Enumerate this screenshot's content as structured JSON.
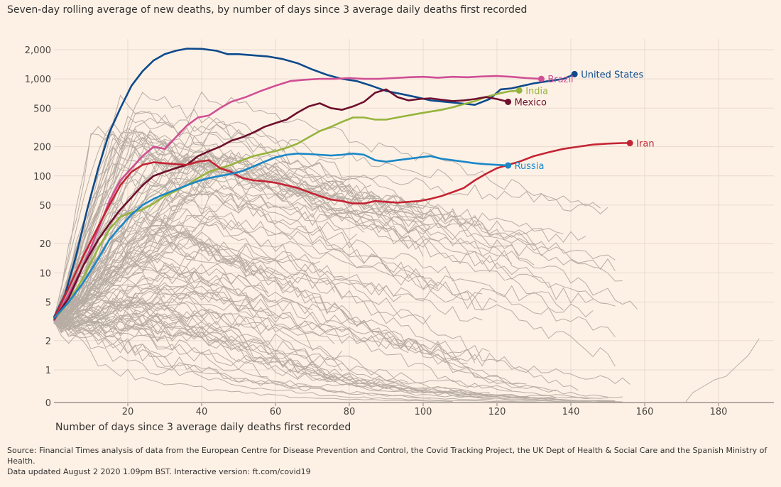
{
  "chart_data": {
    "type": "line",
    "title": "Seven-day rolling average of new deaths, by number of days since 3 average daily deaths first recorded",
    "xlabel": "Number of days since 3 average daily deaths first recorded",
    "ylabel": "",
    "yscale": "log",
    "xlim": [
      0,
      192
    ],
    "ylim": [
      0,
      2600
    ],
    "x_ticks": [
      20,
      40,
      60,
      80,
      100,
      120,
      140,
      160,
      180
    ],
    "y_ticks": [
      {
        "value": 0,
        "label": "0"
      },
      {
        "value": 1,
        "label": "1"
      },
      {
        "value": 2,
        "label": "2"
      },
      {
        "value": 5,
        "label": "5"
      },
      {
        "value": 10,
        "label": "10"
      },
      {
        "value": 20,
        "label": "20"
      },
      {
        "value": 50,
        "label": "50"
      },
      {
        "value": 100,
        "label": "100"
      },
      {
        "value": 200,
        "label": "200"
      },
      {
        "value": 500,
        "label": "500"
      },
      {
        "value": 1000,
        "label": "1,000"
      },
      {
        "value": 2000,
        "label": "2,000"
      }
    ],
    "grid": true,
    "series": [
      {
        "name": "United States",
        "color": "#0d4a8c",
        "points": [
          [
            0,
            3.5
          ],
          [
            3,
            6
          ],
          [
            6,
            15
          ],
          [
            9,
            45
          ],
          [
            12,
            120
          ],
          [
            15,
            280
          ],
          [
            18,
            500
          ],
          [
            21,
            850
          ],
          [
            24,
            1200
          ],
          [
            27,
            1550
          ],
          [
            30,
            1800
          ],
          [
            33,
            1950
          ],
          [
            36,
            2050
          ],
          [
            40,
            2040
          ],
          [
            44,
            1950
          ],
          [
            47,
            1800
          ],
          [
            50,
            1800
          ],
          [
            54,
            1750
          ],
          [
            58,
            1700
          ],
          [
            62,
            1600
          ],
          [
            66,
            1450
          ],
          [
            70,
            1250
          ],
          [
            74,
            1100
          ],
          [
            78,
            1000
          ],
          [
            82,
            950
          ],
          [
            86,
            850
          ],
          [
            90,
            750
          ],
          [
            94,
            700
          ],
          [
            98,
            650
          ],
          [
            102,
            600
          ],
          [
            106,
            580
          ],
          [
            110,
            560
          ],
          [
            114,
            540
          ],
          [
            118,
            620
          ],
          [
            121,
            780
          ],
          [
            124,
            800
          ],
          [
            127,
            850
          ],
          [
            130,
            900
          ],
          [
            134,
            950
          ],
          [
            138,
            1000
          ],
          [
            141,
            1120
          ]
        ]
      },
      {
        "name": "Brazil",
        "color": "#d04f95",
        "points": [
          [
            0,
            3.2
          ],
          [
            4,
            6
          ],
          [
            8,
            12
          ],
          [
            12,
            28
          ],
          [
            15,
            55
          ],
          [
            18,
            90
          ],
          [
            21,
            120
          ],
          [
            24,
            160
          ],
          [
            27,
            200
          ],
          [
            30,
            190
          ],
          [
            33,
            250
          ],
          [
            36,
            330
          ],
          [
            39,
            400
          ],
          [
            42,
            420
          ],
          [
            45,
            500
          ],
          [
            48,
            580
          ],
          [
            52,
            650
          ],
          [
            56,
            750
          ],
          [
            60,
            850
          ],
          [
            64,
            950
          ],
          [
            68,
            980
          ],
          [
            72,
            1000
          ],
          [
            76,
            1000
          ],
          [
            80,
            1020
          ],
          [
            84,
            1000
          ],
          [
            88,
            1000
          ],
          [
            92,
            1020
          ],
          [
            96,
            1040
          ],
          [
            100,
            1050
          ],
          [
            104,
            1030
          ],
          [
            108,
            1050
          ],
          [
            112,
            1040
          ],
          [
            116,
            1060
          ],
          [
            120,
            1070
          ],
          [
            124,
            1050
          ],
          [
            128,
            1020
          ],
          [
            132,
            1000
          ]
        ]
      },
      {
        "name": "India",
        "color": "#96b43c",
        "points": [
          [
            0,
            3.3
          ],
          [
            4,
            5
          ],
          [
            8,
            9
          ],
          [
            12,
            18
          ],
          [
            15,
            28
          ],
          [
            18,
            38
          ],
          [
            21,
            42
          ],
          [
            24,
            45
          ],
          [
            27,
            52
          ],
          [
            30,
            62
          ],
          [
            33,
            70
          ],
          [
            36,
            80
          ],
          [
            39,
            95
          ],
          [
            42,
            110
          ],
          [
            45,
            120
          ],
          [
            48,
            130
          ],
          [
            51,
            145
          ],
          [
            54,
            160
          ],
          [
            57,
            170
          ],
          [
            60,
            180
          ],
          [
            63,
            195
          ],
          [
            66,
            215
          ],
          [
            69,
            250
          ],
          [
            72,
            290
          ],
          [
            75,
            320
          ],
          [
            78,
            360
          ],
          [
            81,
            400
          ],
          [
            84,
            400
          ],
          [
            87,
            380
          ],
          [
            90,
            380
          ],
          [
            93,
            400
          ],
          [
            96,
            420
          ],
          [
            99,
            440
          ],
          [
            102,
            460
          ],
          [
            105,
            480
          ],
          [
            108,
            510
          ],
          [
            111,
            550
          ],
          [
            114,
            590
          ],
          [
            117,
            650
          ],
          [
            120,
            700
          ],
          [
            123,
            740
          ],
          [
            126,
            760
          ]
        ]
      },
      {
        "name": "Mexico",
        "color": "#6e0f2d",
        "points": [
          [
            0,
            3.3
          ],
          [
            4,
            5.5
          ],
          [
            8,
            12
          ],
          [
            12,
            22
          ],
          [
            15,
            32
          ],
          [
            18,
            45
          ],
          [
            21,
            60
          ],
          [
            24,
            80
          ],
          [
            27,
            100
          ],
          [
            30,
            110
          ],
          [
            33,
            120
          ],
          [
            36,
            130
          ],
          [
            39,
            160
          ],
          [
            42,
            180
          ],
          [
            45,
            200
          ],
          [
            48,
            230
          ],
          [
            51,
            250
          ],
          [
            54,
            280
          ],
          [
            57,
            320
          ],
          [
            60,
            350
          ],
          [
            63,
            380
          ],
          [
            66,
            450
          ],
          [
            69,
            520
          ],
          [
            72,
            560
          ],
          [
            75,
            500
          ],
          [
            78,
            480
          ],
          [
            81,
            520
          ],
          [
            84,
            580
          ],
          [
            87,
            720
          ],
          [
            90,
            780
          ],
          [
            93,
            650
          ],
          [
            96,
            600
          ],
          [
            99,
            620
          ],
          [
            102,
            630
          ],
          [
            105,
            610
          ],
          [
            108,
            590
          ],
          [
            111,
            600
          ],
          [
            114,
            620
          ],
          [
            117,
            650
          ],
          [
            120,
            620
          ],
          [
            123,
            580
          ]
        ]
      },
      {
        "name": "Iran",
        "color": "#c42434",
        "points": [
          [
            0,
            3.4
          ],
          [
            4,
            7
          ],
          [
            8,
            15
          ],
          [
            12,
            30
          ],
          [
            15,
            50
          ],
          [
            18,
            80
          ],
          [
            21,
            110
          ],
          [
            24,
            130
          ],
          [
            27,
            138
          ],
          [
            30,
            135
          ],
          [
            33,
            132
          ],
          [
            36,
            130
          ],
          [
            39,
            140
          ],
          [
            42,
            145
          ],
          [
            45,
            120
          ],
          [
            48,
            110
          ],
          [
            51,
            95
          ],
          [
            54,
            90
          ],
          [
            57,
            88
          ],
          [
            60,
            85
          ],
          [
            63,
            80
          ],
          [
            66,
            75
          ],
          [
            69,
            68
          ],
          [
            72,
            62
          ],
          [
            75,
            57
          ],
          [
            78,
            55
          ],
          [
            81,
            52
          ],
          [
            84,
            52
          ],
          [
            87,
            55
          ],
          [
            90,
            54
          ],
          [
            93,
            53
          ],
          [
            96,
            54
          ],
          [
            99,
            55
          ],
          [
            102,
            58
          ],
          [
            105,
            62
          ],
          [
            108,
            68
          ],
          [
            111,
            75
          ],
          [
            114,
            90
          ],
          [
            117,
            105
          ],
          [
            120,
            120
          ],
          [
            123,
            130
          ],
          [
            126,
            140
          ],
          [
            130,
            160
          ],
          [
            134,
            175
          ],
          [
            138,
            190
          ],
          [
            142,
            200
          ],
          [
            146,
            210
          ],
          [
            150,
            215
          ],
          [
            154,
            218
          ],
          [
            156,
            218
          ]
        ]
      },
      {
        "name": "Russia",
        "color": "#1a87c7",
        "points": [
          [
            0,
            3.4
          ],
          [
            4,
            5
          ],
          [
            8,
            8
          ],
          [
            12,
            14
          ],
          [
            15,
            22
          ],
          [
            18,
            30
          ],
          [
            21,
            40
          ],
          [
            24,
            50
          ],
          [
            27,
            58
          ],
          [
            30,
            65
          ],
          [
            33,
            72
          ],
          [
            36,
            80
          ],
          [
            39,
            88
          ],
          [
            42,
            95
          ],
          [
            45,
            100
          ],
          [
            48,
            105
          ],
          [
            51,
            112
          ],
          [
            54,
            125
          ],
          [
            57,
            140
          ],
          [
            60,
            155
          ],
          [
            63,
            165
          ],
          [
            66,
            170
          ],
          [
            69,
            168
          ],
          [
            72,
            165
          ],
          [
            75,
            162
          ],
          [
            78,
            165
          ],
          [
            81,
            170
          ],
          [
            84,
            165
          ],
          [
            87,
            145
          ],
          [
            90,
            140
          ],
          [
            93,
            145
          ],
          [
            96,
            150
          ],
          [
            99,
            155
          ],
          [
            102,
            160
          ],
          [
            105,
            150
          ],
          [
            108,
            145
          ],
          [
            111,
            140
          ],
          [
            114,
            135
          ],
          [
            117,
            132
          ],
          [
            120,
            130
          ],
          [
            123,
            128
          ]
        ]
      }
    ],
    "annotations": [
      {
        "label": "United States",
        "x": 141,
        "y": 1120
      },
      {
        "label": "Brazil",
        "x": 132,
        "y": 1000
      },
      {
        "label": "India",
        "x": 126,
        "y": 760
      },
      {
        "label": "Mexico",
        "x": 123,
        "y": 580
      },
      {
        "label": "Iran",
        "x": 156,
        "y": 218
      },
      {
        "label": "Russia",
        "x": 123,
        "y": 128
      }
    ],
    "background_series_count": 120,
    "background_color": "#b8ada4"
  },
  "source_line1": "Source: Financial Times analysis of data from the European Centre for Disease Prevention and Control, the Covid Tracking Project, the UK Dept of Health & Social Care and the Spanish Ministry of Health.",
  "source_line2": "Data updated August 2 2020 1.09pm BST. Interactive version: ft.com/covid19"
}
